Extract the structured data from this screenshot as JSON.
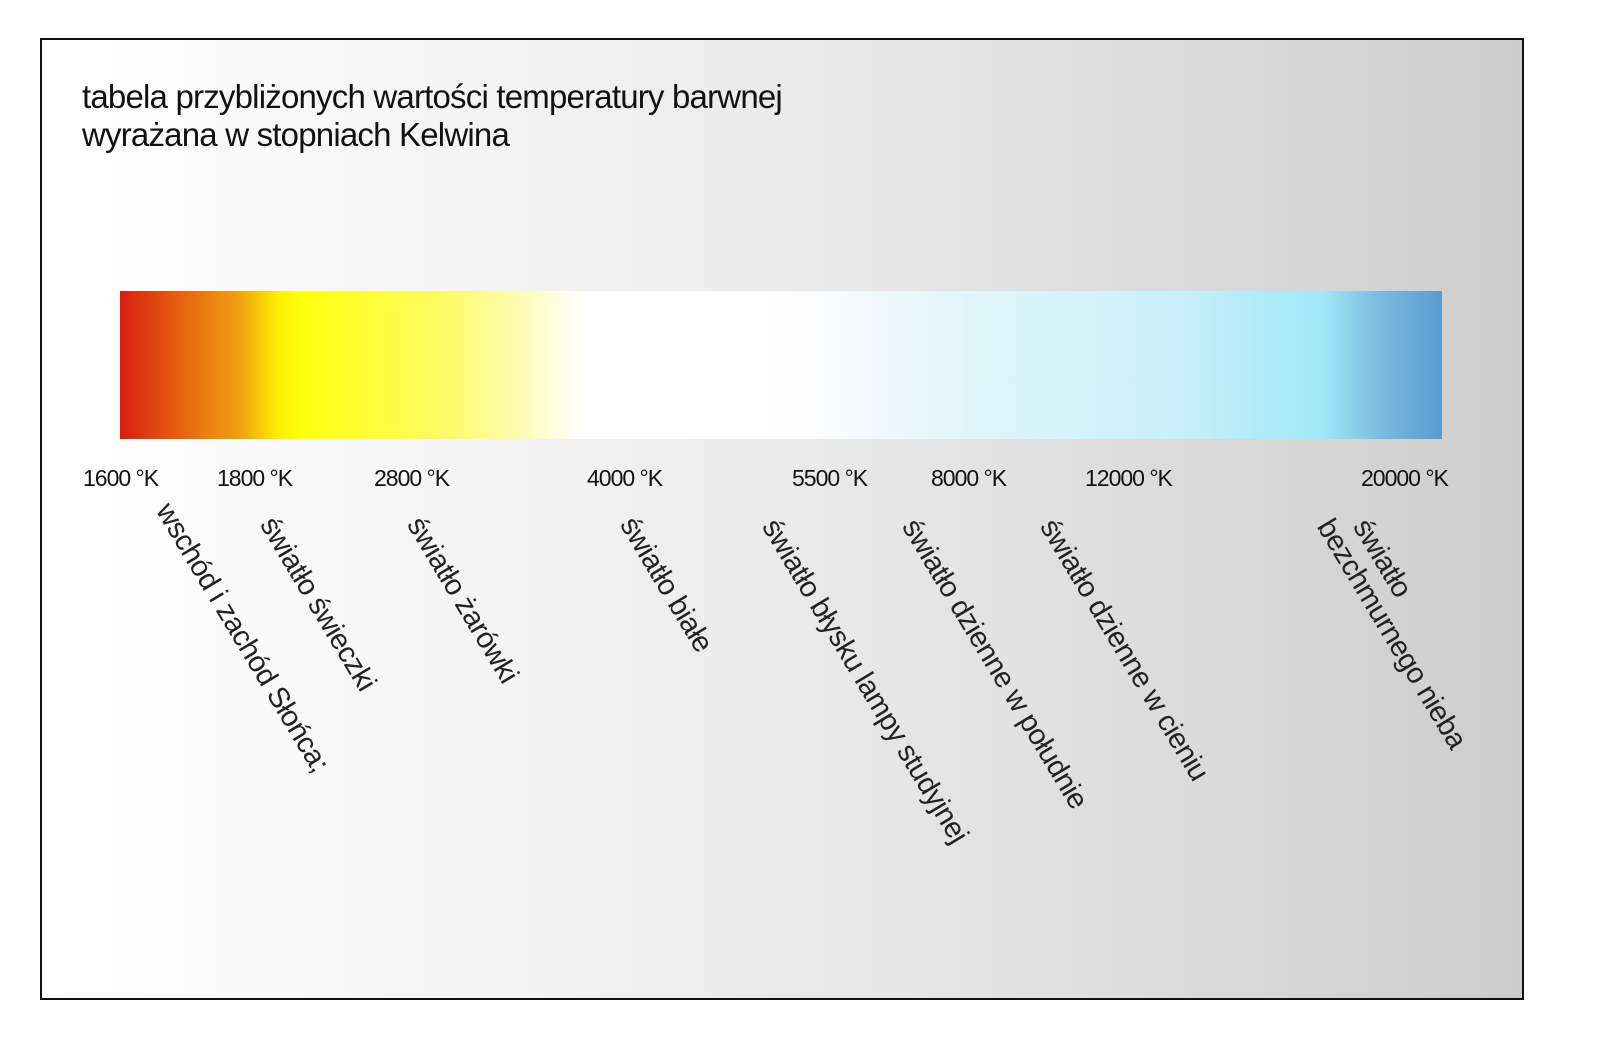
{
  "title": {
    "line1": "tabela przybliżonych wartości temperatury barwnej",
    "line2": "wyrażana w stopniach Kelwina"
  },
  "gradient_colors": [
    "#d81e10",
    "#f0a010",
    "#ffff10",
    "#ffffff",
    "#dcf4fa",
    "#a0e8f8",
    "#5a9bd0"
  ],
  "scale": [
    {
      "value": "1600 °K",
      "label": "wschód i zachód Słońca;"
    },
    {
      "value": "1800 °K",
      "label": "światło świeczki"
    },
    {
      "value": "2800 °K",
      "label": "światło żarówki"
    },
    {
      "value": "4000 °K",
      "label": "światło białe"
    },
    {
      "value": "5500 °K",
      "label": "światło błysku lampy studyjnej"
    },
    {
      "value": "8000 °K",
      "label": "światło dzienne w południe"
    },
    {
      "value": "12000 °K",
      "label": "światło dzienne w cieniu"
    },
    {
      "value": "20000 °K",
      "label": "światło",
      "label2": "bezchmurnego nieba"
    }
  ]
}
